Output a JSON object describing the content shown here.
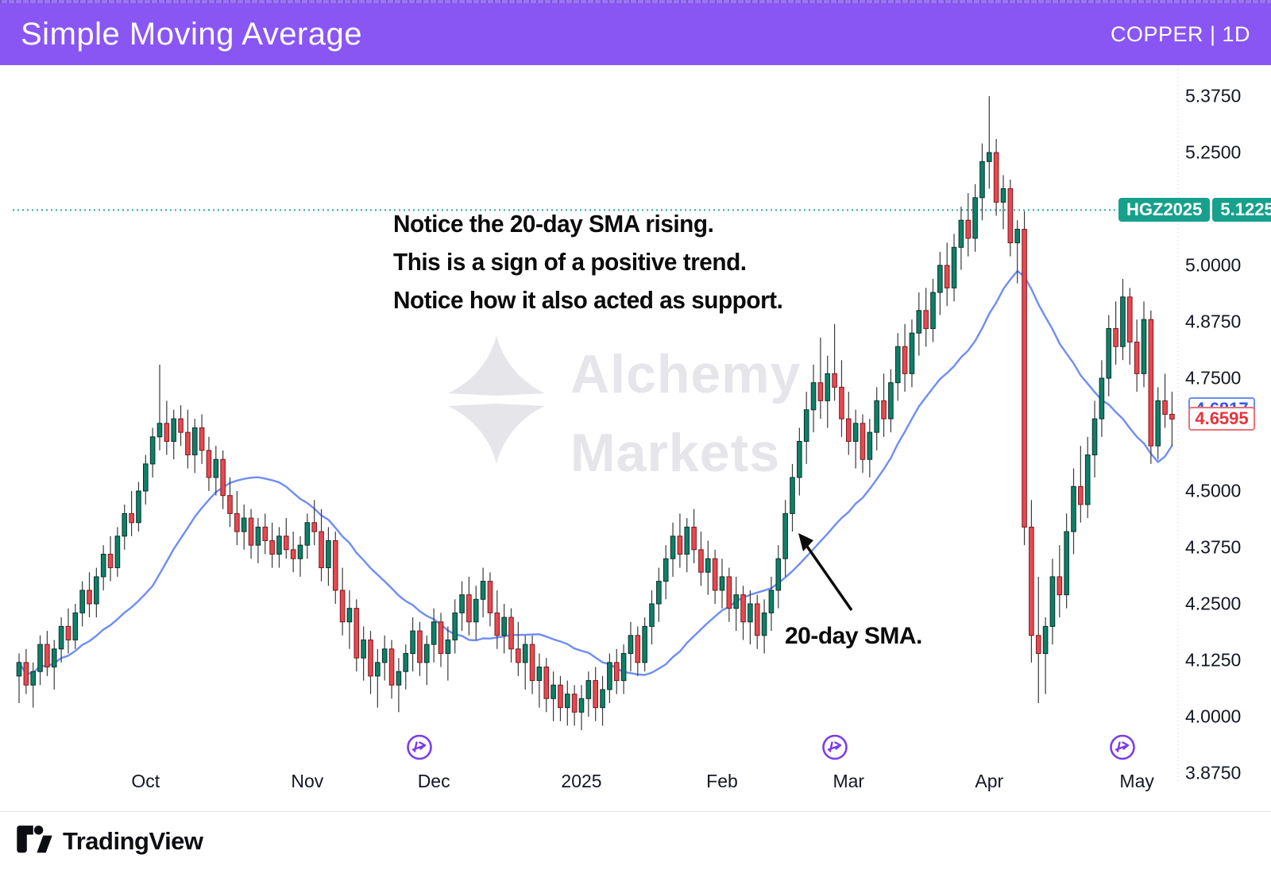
{
  "header": {
    "title": "Simple Moving Average",
    "symbol": "COPPER | 1D"
  },
  "annotations": {
    "line1": "Notice the 20-day SMA rising.",
    "line2": "This is a sign of a positive trend.",
    "line3": "Notice how it also acted as support.",
    "sma_label": "20-day SMA."
  },
  "watermark": {
    "line1": "Alchemy",
    "line2": "Markets"
  },
  "footer": {
    "brand": "TradingView"
  },
  "badges": {
    "contract": {
      "label": "HGZ2025",
      "value": "5.1225",
      "price": 5.1225,
      "color": "#17a08c"
    },
    "ma": {
      "value": "4.6817",
      "price": 4.6817,
      "color": "#6a8cf0"
    },
    "last": {
      "value": "4.6595",
      "price": 4.6595,
      "color": "#ef7077"
    }
  },
  "chart_data": {
    "type": "candlestick",
    "symbol": "COPPER",
    "timeframe": "1D",
    "overlay_line": {
      "name": "20-day SMA",
      "period": 20,
      "last_value": 4.6817
    },
    "reference_line": {
      "label": "HGZ2025",
      "value": 5.1225
    },
    "last_price": 4.6595,
    "ylim": [
      3.82,
      5.42
    ],
    "grid": false,
    "y_ticks": [
      {
        "label": "5.3750",
        "value": 5.375
      },
      {
        "label": "5.2500",
        "value": 5.25
      },
      {
        "label": "5.0000",
        "value": 5.0
      },
      {
        "label": "4.8750",
        "value": 4.875
      },
      {
        "label": "4.7500",
        "value": 4.75
      },
      {
        "label": "4.5000",
        "value": 4.5
      },
      {
        "label": "4.3750",
        "value": 4.375
      },
      {
        "label": "4.2500",
        "value": 4.25
      },
      {
        "label": "4.1250",
        "value": 4.125
      },
      {
        "label": "4.0000",
        "value": 4.0
      },
      {
        "label": "3.8750",
        "value": 3.875
      }
    ],
    "x_ticks": [
      {
        "index": 18,
        "label": "Oct"
      },
      {
        "index": 41,
        "label": "Nov"
      },
      {
        "index": 59,
        "label": "Dec"
      },
      {
        "index": 80,
        "label": "2025"
      },
      {
        "index": 100,
        "label": "Feb"
      },
      {
        "index": 118,
        "label": "Mar"
      },
      {
        "index": 138,
        "label": "Apr"
      },
      {
        "index": 159,
        "label": "May"
      }
    ],
    "gap_marker_indices": [
      57,
      116,
      157
    ],
    "x_start": 24,
    "x_step": 8.85,
    "colors": {
      "up": "#0E8068",
      "down": "#E8484F",
      "up_border": "#0a332b",
      "down_border": "#7c1a1f",
      "wick": "#3a3a3a",
      "sma": "#6e8df6",
      "dotted": "#2aa79a",
      "axis_text": "#131722"
    },
    "candles": [
      [
        4.09,
        4.14,
        4.03,
        4.12
      ],
      [
        4.12,
        4.15,
        4.05,
        4.07
      ],
      [
        4.07,
        4.12,
        4.02,
        4.1
      ],
      [
        4.1,
        4.18,
        4.07,
        4.16
      ],
      [
        4.16,
        4.19,
        4.09,
        4.11
      ],
      [
        4.11,
        4.17,
        4.06,
        4.15
      ],
      [
        4.15,
        4.22,
        4.12,
        4.2
      ],
      [
        4.2,
        4.24,
        4.14,
        4.17
      ],
      [
        4.17,
        4.25,
        4.15,
        4.23
      ],
      [
        4.23,
        4.3,
        4.2,
        4.28
      ],
      [
        4.28,
        4.32,
        4.22,
        4.25
      ],
      [
        4.25,
        4.33,
        4.22,
        4.31
      ],
      [
        4.31,
        4.38,
        4.28,
        4.36
      ],
      [
        4.36,
        4.4,
        4.3,
        4.33
      ],
      [
        4.33,
        4.42,
        4.31,
        4.4
      ],
      [
        4.4,
        4.47,
        4.37,
        4.45
      ],
      [
        4.45,
        4.5,
        4.4,
        4.43
      ],
      [
        4.43,
        4.52,
        4.41,
        4.5
      ],
      [
        4.5,
        4.58,
        4.47,
        4.56
      ],
      [
        4.56,
        4.64,
        4.53,
        4.62
      ],
      [
        4.62,
        4.78,
        4.59,
        4.65
      ],
      [
        4.65,
        4.7,
        4.58,
        4.61
      ],
      [
        4.61,
        4.68,
        4.57,
        4.66
      ],
      [
        4.66,
        4.69,
        4.6,
        4.63
      ],
      [
        4.63,
        4.68,
        4.55,
        4.58
      ],
      [
        4.58,
        4.66,
        4.54,
        4.64
      ],
      [
        4.64,
        4.67,
        4.56,
        4.59
      ],
      [
        4.59,
        4.62,
        4.5,
        4.53
      ],
      [
        4.53,
        4.6,
        4.49,
        4.57
      ],
      [
        4.57,
        4.59,
        4.46,
        4.49
      ],
      [
        4.49,
        4.53,
        4.42,
        4.45
      ],
      [
        4.45,
        4.5,
        4.38,
        4.41
      ],
      [
        4.41,
        4.47,
        4.37,
        4.44
      ],
      [
        4.44,
        4.46,
        4.35,
        4.38
      ],
      [
        4.38,
        4.44,
        4.34,
        4.42
      ],
      [
        4.42,
        4.45,
        4.36,
        4.39
      ],
      [
        4.39,
        4.43,
        4.33,
        4.36
      ],
      [
        4.36,
        4.42,
        4.33,
        4.4
      ],
      [
        4.4,
        4.44,
        4.35,
        4.37
      ],
      [
        4.37,
        4.41,
        4.32,
        4.35
      ],
      [
        4.35,
        4.4,
        4.31,
        4.38
      ],
      [
        4.38,
        4.45,
        4.35,
        4.43
      ],
      [
        4.43,
        4.48,
        4.38,
        4.41
      ],
      [
        4.41,
        4.46,
        4.3,
        4.33
      ],
      [
        4.33,
        4.42,
        4.29,
        4.39
      ],
      [
        4.39,
        4.41,
        4.25,
        4.28
      ],
      [
        4.28,
        4.33,
        4.18,
        4.21
      ],
      [
        4.21,
        4.28,
        4.15,
        4.24
      ],
      [
        4.24,
        4.26,
        4.1,
        4.13
      ],
      [
        4.13,
        4.2,
        4.08,
        4.17
      ],
      [
        4.17,
        4.19,
        4.05,
        4.09
      ],
      [
        4.09,
        4.15,
        4.02,
        4.12
      ],
      [
        4.12,
        4.18,
        4.08,
        4.15
      ],
      [
        4.15,
        4.17,
        4.04,
        4.07
      ],
      [
        4.07,
        4.13,
        4.01,
        4.1
      ],
      [
        4.1,
        4.16,
        4.06,
        4.14
      ],
      [
        4.14,
        4.22,
        4.1,
        4.19
      ],
      [
        4.19,
        4.21,
        4.09,
        4.12
      ],
      [
        4.12,
        4.18,
        4.07,
        4.16
      ],
      [
        4.16,
        4.24,
        4.12,
        4.21
      ],
      [
        4.21,
        4.23,
        4.11,
        4.14
      ],
      [
        4.14,
        4.2,
        4.08,
        4.17
      ],
      [
        4.17,
        4.26,
        4.14,
        4.23
      ],
      [
        4.23,
        4.3,
        4.19,
        4.27
      ],
      [
        4.27,
        4.31,
        4.18,
        4.21
      ],
      [
        4.21,
        4.29,
        4.17,
        4.26
      ],
      [
        4.26,
        4.33,
        4.22,
        4.3
      ],
      [
        4.3,
        4.32,
        4.2,
        4.23
      ],
      [
        4.23,
        4.28,
        4.15,
        4.18
      ],
      [
        4.18,
        4.25,
        4.14,
        4.22
      ],
      [
        4.22,
        4.24,
        4.12,
        4.15
      ],
      [
        4.15,
        4.21,
        4.09,
        4.12
      ],
      [
        4.12,
        4.18,
        4.06,
        4.16
      ],
      [
        4.16,
        4.18,
        4.05,
        4.08
      ],
      [
        4.08,
        4.14,
        4.02,
        4.11
      ],
      [
        4.11,
        4.13,
        4.01,
        4.04
      ],
      [
        4.04,
        4.1,
        3.99,
        4.07
      ],
      [
        4.07,
        4.09,
        3.99,
        4.02
      ],
      [
        4.02,
        4.08,
        3.98,
        4.05
      ],
      [
        4.05,
        4.07,
        3.98,
        4.01
      ],
      [
        4.01,
        4.07,
        3.97,
        4.04
      ],
      [
        4.04,
        4.1,
        4.0,
        4.08
      ],
      [
        4.08,
        4.11,
        3.99,
        4.02
      ],
      [
        4.02,
        4.09,
        3.98,
        4.06
      ],
      [
        4.06,
        4.14,
        4.03,
        4.12
      ],
      [
        4.12,
        4.15,
        4.05,
        4.08
      ],
      [
        4.08,
        4.16,
        4.05,
        4.14
      ],
      [
        4.14,
        4.21,
        4.1,
        4.18
      ],
      [
        4.18,
        4.2,
        4.09,
        4.12
      ],
      [
        4.12,
        4.22,
        4.1,
        4.2
      ],
      [
        4.2,
        4.28,
        4.16,
        4.25
      ],
      [
        4.25,
        4.33,
        4.21,
        4.3
      ],
      [
        4.3,
        4.38,
        4.26,
        4.35
      ],
      [
        4.35,
        4.43,
        4.31,
        4.4
      ],
      [
        4.4,
        4.45,
        4.33,
        4.36
      ],
      [
        4.36,
        4.44,
        4.32,
        4.42
      ],
      [
        4.42,
        4.46,
        4.34,
        4.37
      ],
      [
        4.37,
        4.41,
        4.29,
        4.32
      ],
      [
        4.32,
        4.39,
        4.27,
        4.35
      ],
      [
        4.35,
        4.37,
        4.25,
        4.28
      ],
      [
        4.28,
        4.35,
        4.24,
        4.31
      ],
      [
        4.31,
        4.33,
        4.21,
        4.24
      ],
      [
        4.24,
        4.31,
        4.19,
        4.27
      ],
      [
        4.27,
        4.29,
        4.17,
        4.21
      ],
      [
        4.21,
        4.28,
        4.16,
        4.25
      ],
      [
        4.25,
        4.27,
        4.15,
        4.18
      ],
      [
        4.18,
        4.26,
        4.14,
        4.23
      ],
      [
        4.23,
        4.31,
        4.19,
        4.28
      ],
      [
        4.28,
        4.38,
        4.24,
        4.35
      ],
      [
        4.35,
        4.48,
        4.31,
        4.45
      ],
      [
        4.45,
        4.56,
        4.41,
        4.53
      ],
      [
        4.53,
        4.64,
        4.49,
        4.61
      ],
      [
        4.61,
        4.72,
        4.56,
        4.68
      ],
      [
        4.68,
        4.78,
        4.63,
        4.74
      ],
      [
        4.74,
        4.84,
        4.66,
        4.7
      ],
      [
        4.7,
        4.8,
        4.64,
        4.76
      ],
      [
        4.76,
        4.87,
        4.7,
        4.73
      ],
      [
        4.73,
        4.79,
        4.62,
        4.66
      ],
      [
        4.66,
        4.72,
        4.58,
        4.61
      ],
      [
        4.61,
        4.68,
        4.55,
        4.65
      ],
      [
        4.65,
        4.67,
        4.54,
        4.57
      ],
      [
        4.57,
        4.66,
        4.53,
        4.63
      ],
      [
        4.63,
        4.73,
        4.59,
        4.7
      ],
      [
        4.7,
        4.76,
        4.62,
        4.66
      ],
      [
        4.66,
        4.77,
        4.63,
        4.74
      ],
      [
        4.74,
        4.85,
        4.7,
        4.82
      ],
      [
        4.82,
        4.87,
        4.72,
        4.76
      ],
      [
        4.76,
        4.88,
        4.73,
        4.85
      ],
      [
        4.85,
        4.94,
        4.8,
        4.9
      ],
      [
        4.9,
        4.95,
        4.82,
        4.86
      ],
      [
        4.86,
        4.97,
        4.83,
        4.94
      ],
      [
        4.94,
        5.03,
        4.89,
        5.0
      ],
      [
        5.0,
        5.05,
        4.91,
        4.95
      ],
      [
        4.95,
        5.07,
        4.92,
        5.04
      ],
      [
        5.04,
        5.13,
        4.99,
        5.1
      ],
      [
        5.1,
        5.16,
        5.02,
        5.06
      ],
      [
        5.06,
        5.18,
        5.03,
        5.15
      ],
      [
        5.15,
        5.27,
        5.1,
        5.23
      ],
      [
        5.23,
        5.375,
        5.17,
        5.25
      ],
      [
        5.25,
        5.28,
        5.11,
        5.14
      ],
      [
        5.14,
        5.2,
        5.08,
        5.17
      ],
      [
        5.17,
        5.19,
        5.02,
        5.05
      ],
      [
        5.05,
        5.1,
        4.96,
        5.08
      ],
      [
        5.08,
        5.12,
        4.38,
        4.42
      ],
      [
        4.42,
        4.48,
        4.12,
        4.18
      ],
      [
        4.18,
        4.31,
        4.03,
        4.14
      ],
      [
        4.14,
        4.22,
        4.05,
        4.2
      ],
      [
        4.2,
        4.35,
        4.16,
        4.31
      ],
      [
        4.31,
        4.38,
        4.22,
        4.27
      ],
      [
        4.27,
        4.45,
        4.24,
        4.41
      ],
      [
        4.41,
        4.55,
        4.36,
        4.51
      ],
      [
        4.51,
        4.6,
        4.43,
        4.47
      ],
      [
        4.47,
        4.62,
        4.44,
        4.58
      ],
      [
        4.58,
        4.7,
        4.53,
        4.66
      ],
      [
        4.66,
        4.79,
        4.62,
        4.75
      ],
      [
        4.75,
        4.89,
        4.71,
        4.86
      ],
      [
        4.86,
        4.92,
        4.78,
        4.82
      ],
      [
        4.82,
        4.97,
        4.79,
        4.93
      ],
      [
        4.93,
        4.95,
        4.78,
        4.83
      ],
      [
        4.83,
        4.88,
        4.72,
        4.76
      ],
      [
        4.76,
        4.92,
        4.73,
        4.88
      ],
      [
        4.88,
        4.9,
        4.56,
        4.6
      ],
      [
        4.6,
        4.73,
        4.57,
        4.7
      ],
      [
        4.7,
        4.76,
        4.64,
        4.67
      ],
      [
        4.67,
        4.72,
        4.6,
        4.6595
      ]
    ]
  }
}
